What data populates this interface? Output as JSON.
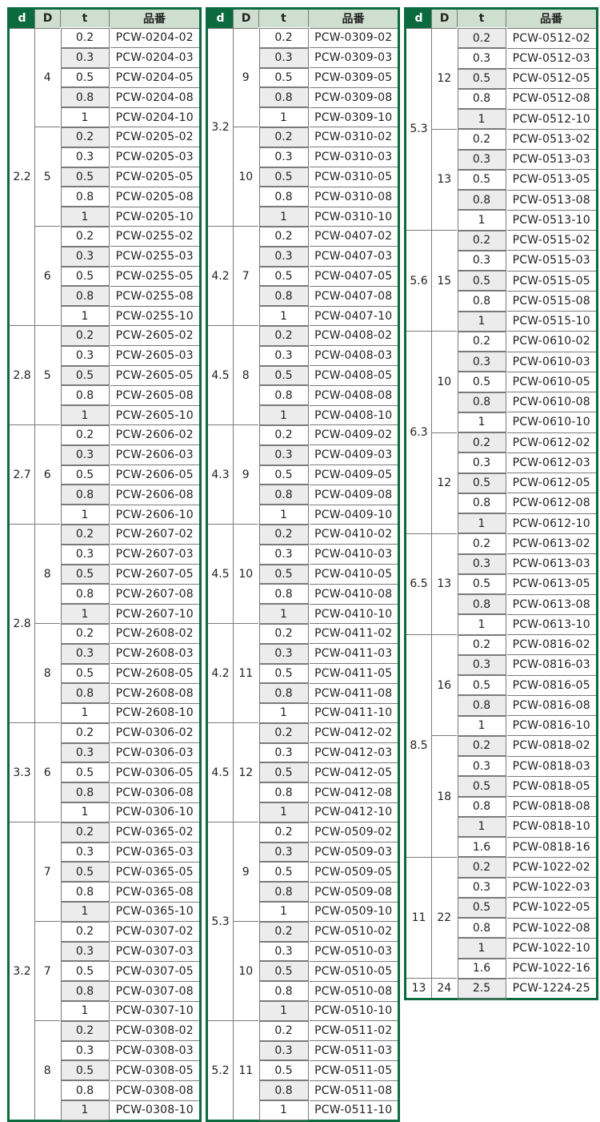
{
  "headers": {
    "d": "d",
    "D": "D",
    "t": "t",
    "code": "品番"
  },
  "colors": {
    "header_dark": "#0b6b3f",
    "header_light": "#cfdfcf",
    "shade": "#ececec"
  },
  "columns": [
    [
      {
        "d": "2.2",
        "subs": [
          {
            "D": "4",
            "alt_start_shaded": false,
            "rows": [
              [
                "0.2",
                "PCW-0204-02"
              ],
              [
                "0.3",
                "PCW-0204-03"
              ],
              [
                "0.5",
                "PCW-0204-05"
              ],
              [
                "0.8",
                "PCW-0204-08"
              ],
              [
                "1",
                "PCW-0204-10"
              ]
            ]
          },
          {
            "D": "5",
            "alt_start_shaded": true,
            "rows": [
              [
                "0.2",
                "PCW-0205-02"
              ],
              [
                "0.3",
                "PCW-0205-03"
              ],
              [
                "0.5",
                "PCW-0205-05"
              ],
              [
                "0.8",
                "PCW-0205-08"
              ],
              [
                "1",
                "PCW-0205-10"
              ]
            ]
          },
          {
            "D": "6",
            "alt_start_shaded": false,
            "rows": [
              [
                "0.2",
                "PCW-0255-02"
              ],
              [
                "0.3",
                "PCW-0255-03"
              ],
              [
                "0.5",
                "PCW-0255-05"
              ],
              [
                "0.8",
                "PCW-0255-08"
              ],
              [
                "1",
                "PCW-0255-10"
              ]
            ]
          }
        ]
      },
      {
        "d": "2.8",
        "subs": [
          {
            "D": "5",
            "alt_start_shaded": true,
            "rows": [
              [
                "0.2",
                "PCW-2605-02"
              ],
              [
                "0.3",
                "PCW-2605-03"
              ],
              [
                "0.5",
                "PCW-2605-05"
              ],
              [
                "0.8",
                "PCW-2605-08"
              ],
              [
                "1",
                "PCW-2605-10"
              ]
            ]
          }
        ]
      },
      {
        "d": "2.7",
        "subs": [
          {
            "D": "6",
            "alt_start_shaded": false,
            "rows": [
              [
                "0.2",
                "PCW-2606-02"
              ],
              [
                "0.3",
                "PCW-2606-03"
              ],
              [
                "0.5",
                "PCW-2606-05"
              ],
              [
                "0.8",
                "PCW-2606-08"
              ],
              [
                "1",
                "PCW-2606-10"
              ]
            ]
          }
        ]
      },
      {
        "d": "2.8",
        "subs": [
          {
            "D": "8",
            "alt_start_shaded": true,
            "rows": [
              [
                "0.2",
                "PCW-2607-02"
              ],
              [
                "0.3",
                "PCW-2607-03"
              ],
              [
                "0.5",
                "PCW-2607-05"
              ],
              [
                "0.8",
                "PCW-2607-08"
              ],
              [
                "1",
                "PCW-2607-10"
              ]
            ]
          },
          {
            "D": "8",
            "alt_start_shaded": false,
            "rows": [
              [
                "0.2",
                "PCW-2608-02"
              ],
              [
                "0.3",
                "PCW-2608-03"
              ],
              [
                "0.5",
                "PCW-2608-05"
              ],
              [
                "0.8",
                "PCW-2608-08"
              ],
              [
                "1",
                "PCW-2608-10"
              ]
            ]
          }
        ]
      },
      {
        "d": "3.3",
        "subs": [
          {
            "D": "6",
            "alt_start_shaded": false,
            "rows": [
              [
                "0.2",
                "PCW-0306-02"
              ],
              [
                "0.3",
                "PCW-0306-03"
              ],
              [
                "0.5",
                "PCW-0306-05"
              ],
              [
                "0.8",
                "PCW-0306-08"
              ],
              [
                "1",
                "PCW-0306-10"
              ]
            ]
          }
        ]
      },
      {
        "d": "3.2",
        "subs": [
          {
            "D": "7",
            "alt_start_shaded": true,
            "rows": [
              [
                "0.2",
                "PCW-0365-02"
              ],
              [
                "0.3",
                "PCW-0365-03"
              ],
              [
                "0.5",
                "PCW-0365-05"
              ],
              [
                "0.8",
                "PCW-0365-08"
              ],
              [
                "1",
                "PCW-0365-10"
              ]
            ]
          },
          {
            "D": "7",
            "alt_start_shaded": false,
            "rows": [
              [
                "0.2",
                "PCW-0307-02"
              ],
              [
                "0.3",
                "PCW-0307-03"
              ],
              [
                "0.5",
                "PCW-0307-05"
              ],
              [
                "0.8",
                "PCW-0307-08"
              ],
              [
                "1",
                "PCW-0307-10"
              ]
            ]
          },
          {
            "D": "8",
            "alt_start_shaded": true,
            "rows": [
              [
                "0.2",
                "PCW-0308-02"
              ],
              [
                "0.3",
                "PCW-0308-03"
              ],
              [
                "0.5",
                "PCW-0308-05"
              ],
              [
                "0.8",
                "PCW-0308-08"
              ],
              [
                "1",
                "PCW-0308-10"
              ]
            ]
          }
        ]
      }
    ],
    [
      {
        "d": "3.2",
        "subs": [
          {
            "D": "9",
            "alt_start_shaded": false,
            "rows": [
              [
                "0.2",
                "PCW-0309-02"
              ],
              [
                "0.3",
                "PCW-0309-03"
              ],
              [
                "0.5",
                "PCW-0309-05"
              ],
              [
                "0.8",
                "PCW-0309-08"
              ],
              [
                "1",
                "PCW-0309-10"
              ]
            ]
          },
          {
            "D": "10",
            "alt_start_shaded": true,
            "rows": [
              [
                "0.2",
                "PCW-0310-02"
              ],
              [
                "0.3",
                "PCW-0310-03"
              ],
              [
                "0.5",
                "PCW-0310-05"
              ],
              [
                "0.8",
                "PCW-0310-08"
              ],
              [
                "1",
                "PCW-0310-10"
              ]
            ]
          }
        ]
      },
      {
        "d": "4.2",
        "subs": [
          {
            "D": "7",
            "alt_start_shaded": false,
            "rows": [
              [
                "0.2",
                "PCW-0407-02"
              ],
              [
                "0.3",
                "PCW-0407-03"
              ],
              [
                "0.5",
                "PCW-0407-05"
              ],
              [
                "0.8",
                "PCW-0407-08"
              ],
              [
                "1",
                "PCW-0407-10"
              ]
            ]
          }
        ]
      },
      {
        "d": "4.5",
        "subs": [
          {
            "D": "8",
            "alt_start_shaded": true,
            "rows": [
              [
                "0.2",
                "PCW-0408-02"
              ],
              [
                "0.3",
                "PCW-0408-03"
              ],
              [
                "0.5",
                "PCW-0408-05"
              ],
              [
                "0.8",
                "PCW-0408-08"
              ],
              [
                "1",
                "PCW-0408-10"
              ]
            ]
          }
        ]
      },
      {
        "d": "4.3",
        "subs": [
          {
            "D": "9",
            "alt_start_shaded": false,
            "rows": [
              [
                "0.2",
                "PCW-0409-02"
              ],
              [
                "0.3",
                "PCW-0409-03"
              ],
              [
                "0.5",
                "PCW-0409-05"
              ],
              [
                "0.8",
                "PCW-0409-08"
              ],
              [
                "1",
                "PCW-0409-10"
              ]
            ]
          }
        ]
      },
      {
        "d": "4.5",
        "subs": [
          {
            "D": "10",
            "alt_start_shaded": true,
            "rows": [
              [
                "0.2",
                "PCW-0410-02"
              ],
              [
                "0.3",
                "PCW-0410-03"
              ],
              [
                "0.5",
                "PCW-0410-05"
              ],
              [
                "0.8",
                "PCW-0410-08"
              ],
              [
                "1",
                "PCW-0410-10"
              ]
            ]
          }
        ]
      },
      {
        "d": "4.2",
        "subs": [
          {
            "D": "11",
            "alt_start_shaded": false,
            "rows": [
              [
                "0.2",
                "PCW-0411-02"
              ],
              [
                "0.3",
                "PCW-0411-03"
              ],
              [
                "0.5",
                "PCW-0411-05"
              ],
              [
                "0.8",
                "PCW-0411-08"
              ],
              [
                "1",
                "PCW-0411-10"
              ]
            ]
          }
        ]
      },
      {
        "d": "4.5",
        "subs": [
          {
            "D": "12",
            "alt_start_shaded": true,
            "rows": [
              [
                "0.2",
                "PCW-0412-02"
              ],
              [
                "0.3",
                "PCW-0412-03"
              ],
              [
                "0.5",
                "PCW-0412-05"
              ],
              [
                "0.8",
                "PCW-0412-08"
              ],
              [
                "1",
                "PCW-0412-10"
              ]
            ]
          }
        ]
      },
      {
        "d": "5.3",
        "subs": [
          {
            "D": "9",
            "alt_start_shaded": false,
            "rows": [
              [
                "0.2",
                "PCW-0509-02"
              ],
              [
                "0.3",
                "PCW-0509-03"
              ],
              [
                "0.5",
                "PCW-0509-05"
              ],
              [
                "0.8",
                "PCW-0509-08"
              ],
              [
                "1",
                "PCW-0509-10"
              ]
            ]
          },
          {
            "D": "10",
            "alt_start_shaded": true,
            "rows": [
              [
                "0.2",
                "PCW-0510-02"
              ],
              [
                "0.3",
                "PCW-0510-03"
              ],
              [
                "0.5",
                "PCW-0510-05"
              ],
              [
                "0.8",
                "PCW-0510-08"
              ],
              [
                "1",
                "PCW-0510-10"
              ]
            ]
          }
        ]
      },
      {
        "d": "5.2",
        "subs": [
          {
            "D": "11",
            "alt_start_shaded": false,
            "rows": [
              [
                "0.2",
                "PCW-0511-02"
              ],
              [
                "0.3",
                "PCW-0511-03"
              ],
              [
                "0.5",
                "PCW-0511-05"
              ],
              [
                "0.8",
                "PCW-0511-08"
              ],
              [
                "1",
                "PCW-0511-10"
              ]
            ]
          }
        ]
      }
    ],
    [
      {
        "d": "5.3",
        "subs": [
          {
            "D": "12",
            "alt_start_shaded": true,
            "rows": [
              [
                "0.2",
                "PCW-0512-02"
              ],
              [
                "0.3",
                "PCW-0512-03"
              ],
              [
                "0.5",
                "PCW-0512-05"
              ],
              [
                "0.8",
                "PCW-0512-08"
              ],
              [
                "1",
                "PCW-0512-10"
              ]
            ]
          },
          {
            "D": "13",
            "alt_start_shaded": false,
            "rows": [
              [
                "0.2",
                "PCW-0513-02"
              ],
              [
                "0.3",
                "PCW-0513-03"
              ],
              [
                "0.5",
                "PCW-0513-05"
              ],
              [
                "0.8",
                "PCW-0513-08"
              ],
              [
                "1",
                "PCW-0513-10"
              ]
            ]
          }
        ]
      },
      {
        "d": "5.6",
        "subs": [
          {
            "D": "15",
            "alt_start_shaded": true,
            "rows": [
              [
                "0.2",
                "PCW-0515-02"
              ],
              [
                "0.3",
                "PCW-0515-03"
              ],
              [
                "0.5",
                "PCW-0515-05"
              ],
              [
                "0.8",
                "PCW-0515-08"
              ],
              [
                "1",
                "PCW-0515-10"
              ]
            ]
          }
        ]
      },
      {
        "d": "6.3",
        "subs": [
          {
            "D": "10",
            "alt_start_shaded": false,
            "rows": [
              [
                "0.2",
                "PCW-0610-02"
              ],
              [
                "0.3",
                "PCW-0610-03"
              ],
              [
                "0.5",
                "PCW-0610-05"
              ],
              [
                "0.8",
                "PCW-0610-08"
              ],
              [
                "1",
                "PCW-0610-10"
              ]
            ]
          },
          {
            "D": "12",
            "alt_start_shaded": true,
            "rows": [
              [
                "0.2",
                "PCW-0612-02"
              ],
              [
                "0.3",
                "PCW-0612-03"
              ],
              [
                "0.5",
                "PCW-0612-05"
              ],
              [
                "0.8",
                "PCW-0612-08"
              ],
              [
                "1",
                "PCW-0612-10"
              ]
            ]
          }
        ]
      },
      {
        "d": "6.5",
        "subs": [
          {
            "D": "13",
            "alt_start_shaded": false,
            "rows": [
              [
                "0.2",
                "PCW-0613-02"
              ],
              [
                "0.3",
                "PCW-0613-03"
              ],
              [
                "0.5",
                "PCW-0613-05"
              ],
              [
                "0.8",
                "PCW-0613-08"
              ],
              [
                "1",
                "PCW-0613-10"
              ]
            ]
          }
        ]
      },
      {
        "d": "8.5",
        "subs": [
          {
            "D": "16",
            "alt_start_shaded": false,
            "rows": [
              [
                "0.2",
                "PCW-0816-02"
              ],
              [
                "0.3",
                "PCW-0816-03"
              ],
              [
                "0.5",
                "PCW-0816-05"
              ],
              [
                "0.8",
                "PCW-0816-08"
              ],
              [
                "1",
                "PCW-0816-10"
              ]
            ]
          },
          {
            "D": "18",
            "alt_start_shaded": true,
            "rows": [
              [
                "0.2",
                "PCW-0818-02"
              ],
              [
                "0.3",
                "PCW-0818-03"
              ],
              [
                "0.5",
                "PCW-0818-05"
              ],
              [
                "0.8",
                "PCW-0818-08"
              ],
              [
                "1",
                "PCW-0818-10"
              ],
              [
                "1.6",
                "PCW-0818-16"
              ]
            ]
          }
        ]
      },
      {
        "d": "11",
        "subs": [
          {
            "D": "22",
            "alt_start_shaded": true,
            "rows": [
              [
                "0.2",
                "PCW-1022-02"
              ],
              [
                "0.3",
                "PCW-1022-03"
              ],
              [
                "0.5",
                "PCW-1022-05"
              ],
              [
                "0.8",
                "PCW-1022-08"
              ],
              [
                "1",
                "PCW-1022-10"
              ],
              [
                "1.6",
                "PCW-1022-16"
              ]
            ]
          }
        ]
      },
      {
        "d": "13",
        "subs": [
          {
            "D": "24",
            "alt_start_shaded": true,
            "rows": [
              [
                "2.5",
                "PCW-1224-25"
              ]
            ]
          }
        ]
      }
    ]
  ]
}
